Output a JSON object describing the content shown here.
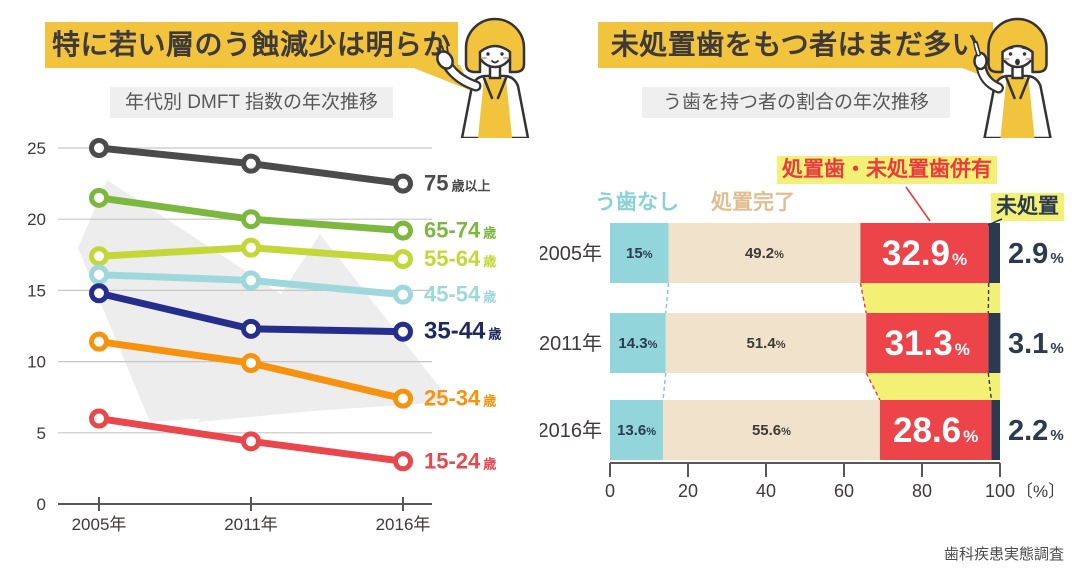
{
  "source": "歯科疾患実態調査",
  "colors": {
    "banner_yellow": "#f2c33d",
    "highlight_yellow": "#f2f075",
    "subtitle_gray": "#efefef",
    "title_text": "#3e3a39",
    "grid_gray": "#c6c6c6",
    "axis_gray": "#595857",
    "watermark_gray": "#ededed",
    "no_caries_fill": "#92d5da",
    "treated_fill": "#f1e3cb",
    "both_fill": "#ec4449",
    "untreated_fill": "#2c3a50"
  },
  "left_panel": {
    "headline": "特に若い層のう蝕減少は明らか",
    "subtitle": "年代別 DMFT 指数の年次推移"
  },
  "right_panel": {
    "headline": "未処置歯をもつ者はまだ多い",
    "subtitle": "う歯を持つ者の割合の年次推移",
    "legend": {
      "no_caries": "う歯なし",
      "treated": "処置完了",
      "both": "処置歯・未処置歯併有",
      "untreated": "未処置"
    }
  },
  "chart_data": [
    {
      "type": "line",
      "title": "年代別 DMFT 指数の年次推移",
      "x": [
        "2005年",
        "2011年",
        "2016年"
      ],
      "ylim": [
        0,
        25
      ],
      "yticks": [
        0,
        5,
        10,
        15,
        20,
        25
      ],
      "grid": true,
      "legend_position": "right-of-line-ends",
      "series": [
        {
          "name": "75歳以上",
          "label_main": "75",
          "label_suffix": "歳以上",
          "color": "#4b4b4b",
          "label_color": "#4b4b4b",
          "values": [
            25.0,
            23.9,
            22.5
          ]
        },
        {
          "name": "65-74歳",
          "label_main": "65-74",
          "label_suffix": "歳",
          "color": "#7cb83f",
          "label_color": "#7cb83f",
          "values": [
            21.5,
            20.0,
            19.2
          ]
        },
        {
          "name": "55-64歳",
          "label_main": "55-64",
          "label_suffix": "歳",
          "color": "#c3d838",
          "label_color": "#c3d838",
          "values": [
            17.4,
            18.0,
            17.2
          ]
        },
        {
          "name": "45-54歳",
          "label_main": "45-54",
          "label_suffix": "歳",
          "color": "#9fd8dc",
          "label_color": "#9fd8dc",
          "values": [
            16.1,
            15.7,
            14.7
          ]
        },
        {
          "name": "35-44歳",
          "label_main": "35-44",
          "label_suffix": "歳",
          "color": "#252e8c",
          "label_color": "#20295f",
          "emphasis": true,
          "values": [
            14.8,
            12.3,
            12.1
          ]
        },
        {
          "name": "25-34歳",
          "label_main": "25-34",
          "label_suffix": "歳",
          "color": "#f6920e",
          "label_color": "#f6920e",
          "values": [
            11.4,
            9.9,
            7.4
          ]
        },
        {
          "name": "15-24歳",
          "label_main": "15-24",
          "label_suffix": "歳",
          "color": "#e9474b",
          "label_color": "#e9474b",
          "values": [
            6.0,
            4.4,
            3.0
          ]
        }
      ]
    },
    {
      "type": "bar",
      "stacked": true,
      "orientation": "horizontal",
      "title": "う歯を持つ者の割合の年次推移",
      "categories": [
        "2005年",
        "2011年",
        "2016年"
      ],
      "xlim": [
        0,
        100
      ],
      "xticks": [
        0,
        20,
        40,
        60,
        80,
        100
      ],
      "xunit": "〔%〕",
      "series": [
        {
          "name": "う歯なし",
          "color": "#92d5da",
          "text_color": "#2c3a50",
          "values": [
            15,
            14.3,
            13.6
          ]
        },
        {
          "name": "処置完了",
          "color": "#f1e3cb",
          "text_color": "#3e3a39",
          "values": [
            49.2,
            51.4,
            55.6
          ]
        },
        {
          "name": "処置歯・未処置歯併有",
          "color": "#ec4449",
          "text_color": "#ffffff",
          "values": [
            32.9,
            31.3,
            28.6
          ]
        },
        {
          "name": "未処置",
          "color": "#2c3a50",
          "text_color": "#2c3a50",
          "values": [
            2.9,
            3.1,
            2.2
          ]
        }
      ]
    }
  ]
}
